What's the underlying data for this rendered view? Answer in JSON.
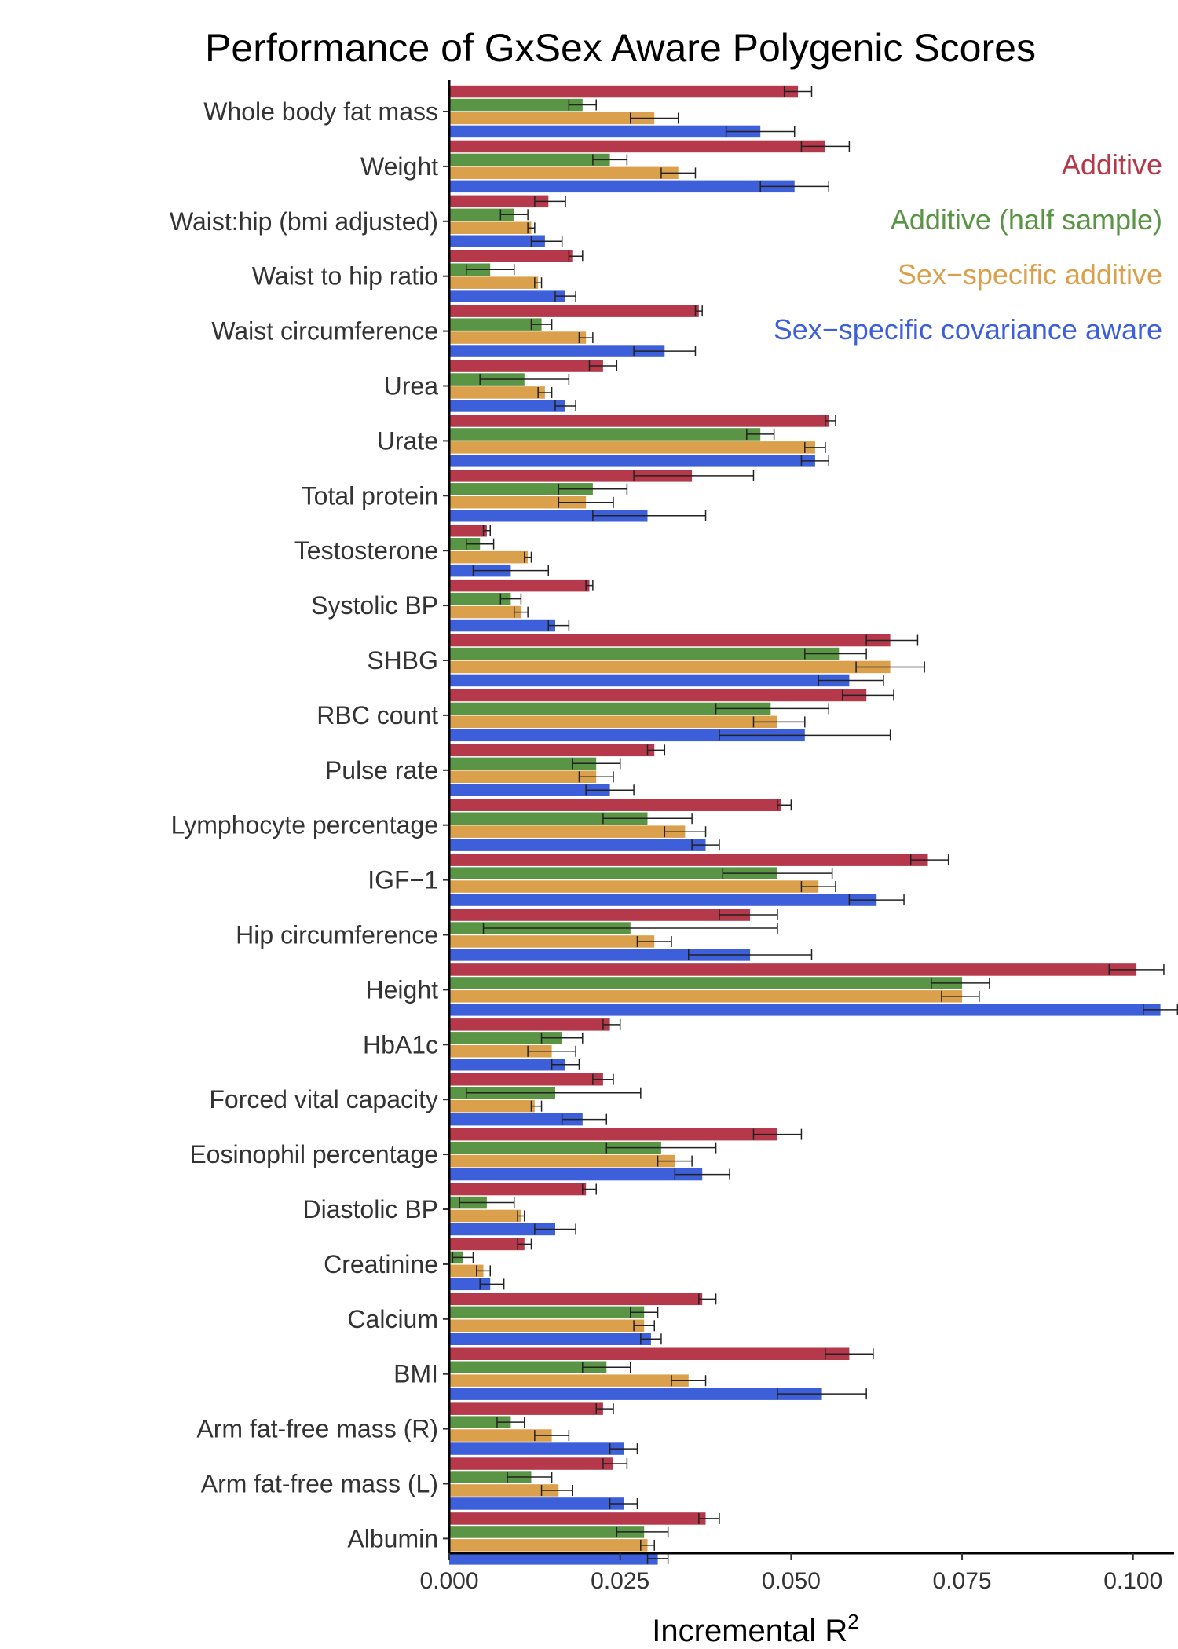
{
  "chart_data": {
    "type": "bar",
    "orientation": "horizontal",
    "title": "Performance of GxSex Aware Polygenic Scores",
    "xlabel": "Incremental R",
    "xlabel_superscript": "2",
    "ylabel": "",
    "xlim": [
      0,
      0.106
    ],
    "xticks": [
      0.0,
      0.025,
      0.05,
      0.075,
      0.1
    ],
    "xtick_labels": [
      "0.000",
      "0.025",
      "0.050",
      "0.075",
      "0.100"
    ],
    "grid": false,
    "legend_position": "top-right",
    "categories": [
      "Whole body fat mass",
      "Weight",
      "Waist:hip (bmi adjusted)",
      "Waist to hip ratio",
      "Waist circumference",
      "Urea",
      "Urate",
      "Total protein",
      "Testosterone",
      "Systolic BP",
      "SHBG",
      "RBC count",
      "Pulse rate",
      "Lymphocyte percentage",
      "IGF−1",
      "Hip circumference",
      "Height",
      "HbA1c",
      "Forced vital capacity",
      "Eosinophil percentage",
      "Diastolic BP",
      "Creatinine",
      "Calcium",
      "BMI",
      "Arm fat-free mass (R)",
      "Arm fat-free mass (L)",
      "Albumin"
    ],
    "series": [
      {
        "name": "Additive",
        "color": "#b5394a",
        "values": [
          0.051,
          0.055,
          0.0145,
          0.018,
          0.0365,
          0.0225,
          0.0555,
          0.0355,
          0.0055,
          0.0205,
          0.0645,
          0.061,
          0.03,
          0.0485,
          0.07,
          0.044,
          0.1005,
          0.0235,
          0.0225,
          0.048,
          0.02,
          0.011,
          0.037,
          0.0585,
          0.0225,
          0.024,
          0.0375
        ],
        "err_low": [
          0.049,
          0.0515,
          0.0125,
          0.0175,
          0.036,
          0.0205,
          0.055,
          0.027,
          0.005,
          0.02,
          0.061,
          0.0575,
          0.029,
          0.048,
          0.0675,
          0.0395,
          0.0965,
          0.0225,
          0.021,
          0.0445,
          0.0195,
          0.01,
          0.0365,
          0.055,
          0.0215,
          0.0225,
          0.0365
        ],
        "err_high": [
          0.053,
          0.0585,
          0.017,
          0.0195,
          0.037,
          0.0245,
          0.0565,
          0.0445,
          0.006,
          0.021,
          0.0685,
          0.065,
          0.0315,
          0.05,
          0.073,
          0.048,
          0.1045,
          0.025,
          0.024,
          0.0515,
          0.0215,
          0.012,
          0.039,
          0.062,
          0.024,
          0.026,
          0.0395
        ]
      },
      {
        "name": "Additive (half sample)",
        "color": "#5a9445",
        "values": [
          0.0195,
          0.0235,
          0.0095,
          0.006,
          0.0135,
          0.011,
          0.0455,
          0.021,
          0.0045,
          0.009,
          0.057,
          0.047,
          0.0215,
          0.029,
          0.048,
          0.0265,
          0.075,
          0.0165,
          0.0155,
          0.031,
          0.0055,
          0.002,
          0.0285,
          0.023,
          0.009,
          0.012,
          0.0285
        ],
        "err_low": [
          0.0175,
          0.021,
          0.0075,
          0.0025,
          0.012,
          0.0045,
          0.0435,
          0.016,
          0.0025,
          0.0075,
          0.052,
          0.039,
          0.018,
          0.0225,
          0.04,
          0.005,
          0.0705,
          0.0135,
          0.0025,
          0.023,
          0.0015,
          0.0005,
          0.0265,
          0.0195,
          0.007,
          0.0085,
          0.0245
        ],
        "err_high": [
          0.0215,
          0.026,
          0.0115,
          0.0095,
          0.015,
          0.0175,
          0.0475,
          0.026,
          0.0065,
          0.0105,
          0.061,
          0.0555,
          0.025,
          0.0355,
          0.056,
          0.048,
          0.079,
          0.0195,
          0.028,
          0.039,
          0.0095,
          0.0035,
          0.0305,
          0.0265,
          0.011,
          0.015,
          0.032
        ]
      },
      {
        "name": "Sex−specific additive",
        "color": "#dba04c",
        "values": [
          0.03,
          0.0335,
          0.012,
          0.013,
          0.02,
          0.014,
          0.0535,
          0.02,
          0.0115,
          0.0105,
          0.0645,
          0.048,
          0.0215,
          0.0345,
          0.054,
          0.03,
          0.075,
          0.015,
          0.0125,
          0.033,
          0.0105,
          0.005,
          0.0285,
          0.035,
          0.015,
          0.016,
          0.029
        ],
        "err_low": [
          0.0265,
          0.031,
          0.0115,
          0.0125,
          0.019,
          0.013,
          0.052,
          0.016,
          0.011,
          0.0095,
          0.0595,
          0.0445,
          0.019,
          0.0315,
          0.0515,
          0.0275,
          0.072,
          0.0115,
          0.012,
          0.0305,
          0.01,
          0.004,
          0.027,
          0.0325,
          0.0125,
          0.0135,
          0.028
        ],
        "err_high": [
          0.0335,
          0.036,
          0.0125,
          0.0135,
          0.021,
          0.015,
          0.055,
          0.024,
          0.012,
          0.0115,
          0.0695,
          0.052,
          0.024,
          0.0375,
          0.0565,
          0.0325,
          0.0775,
          0.0185,
          0.0135,
          0.0355,
          0.011,
          0.006,
          0.03,
          0.0375,
          0.0175,
          0.018,
          0.03
        ]
      },
      {
        "name": "Sex−specific covariance aware",
        "color": "#3d5fd9",
        "values": [
          0.0455,
          0.0505,
          0.014,
          0.017,
          0.0315,
          0.017,
          0.0535,
          0.029,
          0.009,
          0.0155,
          0.0585,
          0.052,
          0.0235,
          0.0375,
          0.0625,
          0.044,
          0.104,
          0.017,
          0.0195,
          0.037,
          0.0155,
          0.006,
          0.0295,
          0.0545,
          0.0255,
          0.0255,
          0.0305
        ],
        "err_low": [
          0.0405,
          0.0455,
          0.012,
          0.0155,
          0.027,
          0.0155,
          0.0515,
          0.021,
          0.0035,
          0.0145,
          0.054,
          0.0395,
          0.02,
          0.0355,
          0.0585,
          0.035,
          0.1015,
          0.015,
          0.0165,
          0.033,
          0.0125,
          0.0045,
          0.028,
          0.048,
          0.0235,
          0.0235,
          0.029
        ],
        "err_high": [
          0.0505,
          0.0555,
          0.0165,
          0.0185,
          0.036,
          0.0185,
          0.0555,
          0.0375,
          0.0145,
          0.0175,
          0.0635,
          0.0645,
          0.027,
          0.0395,
          0.0665,
          0.053,
          0.1065,
          0.019,
          0.023,
          0.041,
          0.0185,
          0.008,
          0.031,
          0.061,
          0.0275,
          0.0275,
          0.032
        ]
      }
    ]
  }
}
